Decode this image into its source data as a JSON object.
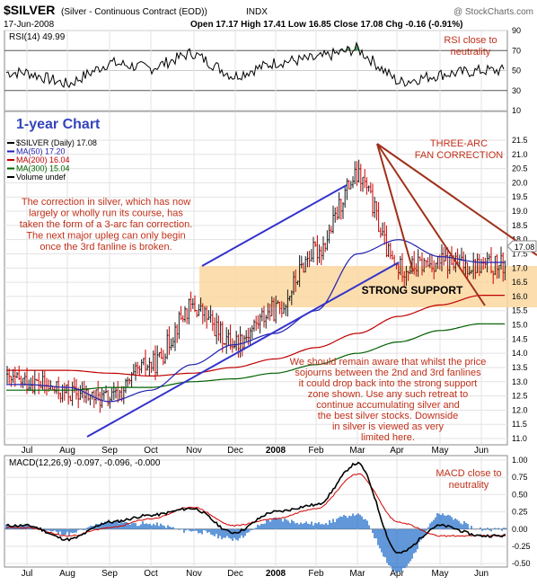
{
  "header": {
    "symbol": "$SILVER",
    "name": "(Silver - Continuous Contract (EOD))",
    "exchange": "INDX",
    "source": "@ StockCharts.com",
    "date": "17-Jun-2008",
    "ohlc": "Open 17.17   High 17.41   Low 16.85   Close 17.08   Chg -0.16 (-0.91%)"
  },
  "rsi_panel": {
    "label": "RSI(14) 49.99",
    "ticks": [
      "90",
      "70",
      "50",
      "30",
      "10"
    ],
    "tick_values": [
      90,
      70,
      50,
      30,
      10
    ],
    "annotation": [
      "RSI close to",
      "neutrality"
    ]
  },
  "price_panel": {
    "title": "1-year Chart",
    "legend": [
      {
        "text": "$SILVER (Daily) 17.08",
        "color": "#000000"
      },
      {
        "text": "MA(50) 17.20",
        "color": "#1f1fb0"
      },
      {
        "text": "MA(200) 16.04",
        "color": "#c00000"
      },
      {
        "text": "MA(300) 15.04",
        "color": "#006000"
      },
      {
        "text": "Volume undef",
        "color": "#000000"
      }
    ],
    "ticks": [
      "21.5",
      "21.0",
      "20.5",
      "20.0",
      "19.5",
      "19.0",
      "18.5",
      "18.0",
      "17.5",
      "17.0",
      "16.5",
      "16.0",
      "15.5",
      "15.0",
      "14.5",
      "14.0",
      "13.5",
      "13.0",
      "12.5",
      "12.0",
      "11.5",
      "11.0"
    ],
    "tick_values": [
      21.5,
      21.0,
      20.5,
      20.0,
      19.5,
      19.0,
      18.5,
      18.0,
      17.5,
      17.0,
      16.5,
      16.0,
      15.5,
      15.0,
      14.5,
      14.0,
      13.5,
      13.0,
      12.5,
      12.0,
      11.5,
      11.0
    ],
    "price_tag": "17.08",
    "fan_label": [
      "THREE-ARC",
      "FAN CORRECTION"
    ],
    "support_label": "STRONG SUPPORT",
    "note_left": [
      "The correction in silver, which has now",
      "largely or wholly run its course, has",
      "taken the form of a 3-arc fan correction.",
      "The next major upleg can only begin",
      "once the 3rd fanline is broken."
    ],
    "note_right": [
      "We should remain aware that whilst the price",
      "sojourns between the 2nd and 3rd fanlines",
      "it could drop back into the strong support",
      "zone shown. Use any such retreat to",
      "continue accumulating silver and",
      "the best silver stocks. Downside",
      "in silver is viewed as very",
      "limited here."
    ]
  },
  "macd_panel": {
    "label": "MACD(12,26,9) -0.097, -0.096, -0.000",
    "ticks": [
      "1.00",
      "0.75",
      "0.50",
      "0.25",
      "0.00",
      "-0.25",
      "-0.50"
    ],
    "tick_values": [
      1.0,
      0.75,
      0.5,
      0.25,
      0.0,
      -0.25,
      -0.5
    ],
    "annotation": [
      "MACD close to",
      "neutrality"
    ]
  },
  "x_axis": {
    "labels": [
      "Jul",
      "Aug",
      "Sep",
      "Oct",
      "Nov",
      "Dec",
      "2008",
      "Feb",
      "Mar",
      "Apr",
      "May",
      "Jun"
    ],
    "bold": [
      "2008"
    ]
  },
  "colors": {
    "price_bars": "#1a1a1a",
    "down_bars": "#d00000",
    "ma50": "#1f1fb0",
    "ma200": "#c00000",
    "ma300": "#006000",
    "channel": "#3333cc",
    "fanlines": "#a0301a",
    "support_zone": "#fbd7a0",
    "annotation_text": "#c0301a",
    "title_blue": "#3344bb",
    "macd_hist": "#3a7fd0",
    "rsi_fill": "#2e8b3e"
  },
  "chart_data": [
    {
      "type": "line",
      "name": "RSI(14)",
      "x": [
        "Jul",
        "Aug",
        "Sep",
        "Oct",
        "Nov",
        "Dec",
        "2008",
        "Feb",
        "Mar",
        "Apr",
        "May",
        "Jun"
      ],
      "ylim": [
        10,
        90
      ],
      "series": [
        {
          "name": "RSI(14)",
          "values": [
            48,
            36,
            58,
            52,
            68,
            44,
            58,
            62,
            72,
            38,
            46,
            50
          ]
        }
      ]
    },
    {
      "type": "line",
      "title": "1-year Chart",
      "x": [
        "Jul",
        "Aug",
        "Sep",
        "Oct",
        "Nov",
        "Dec",
        "2008",
        "Feb",
        "Mar",
        "Apr",
        "May",
        "Jun"
      ],
      "ylim": [
        11.0,
        21.5
      ],
      "series": [
        {
          "name": "$SILVER (Daily) 17.08",
          "values": [
            13.0,
            12.6,
            12.4,
            13.6,
            15.6,
            14.4,
            15.5,
            17.6,
            20.2,
            17.0,
            17.2,
            17.08
          ]
        },
        {
          "name": "MA(50) 17.20",
          "values": [
            12.9,
            12.8,
            12.3,
            12.7,
            13.6,
            14.3,
            14.7,
            15.5,
            17.5,
            18.0,
            17.4,
            17.2
          ]
        },
        {
          "name": "MA(200) 16.04",
          "values": [
            13.4,
            13.4,
            13.3,
            13.2,
            13.3,
            13.5,
            13.8,
            14.2,
            14.7,
            15.3,
            15.7,
            16.04
          ]
        },
        {
          "name": "MA(300) 15.04",
          "values": [
            12.7,
            12.7,
            12.8,
            12.8,
            13.0,
            13.1,
            13.3,
            13.6,
            14.0,
            14.4,
            14.8,
            15.04
          ]
        }
      ]
    },
    {
      "type": "line",
      "label": "MACD(12,26,9)",
      "x": [
        "Jul",
        "Aug",
        "Sep",
        "Oct",
        "Nov",
        "Dec",
        "2008",
        "Feb",
        "Mar",
        "Apr",
        "May",
        "Jun"
      ],
      "ylim": [
        -0.5,
        1.0
      ],
      "series": [
        {
          "name": "MACD",
          "values": [
            0.05,
            -0.15,
            0.1,
            0.2,
            0.3,
            -0.05,
            0.25,
            0.35,
            0.95,
            -0.35,
            0.05,
            -0.097
          ]
        },
        {
          "name": "Signal",
          "values": [
            0.02,
            -0.1,
            0.02,
            0.15,
            0.32,
            0.05,
            0.15,
            0.3,
            0.8,
            0.1,
            -0.1,
            -0.096
          ]
        }
      ]
    }
  ]
}
